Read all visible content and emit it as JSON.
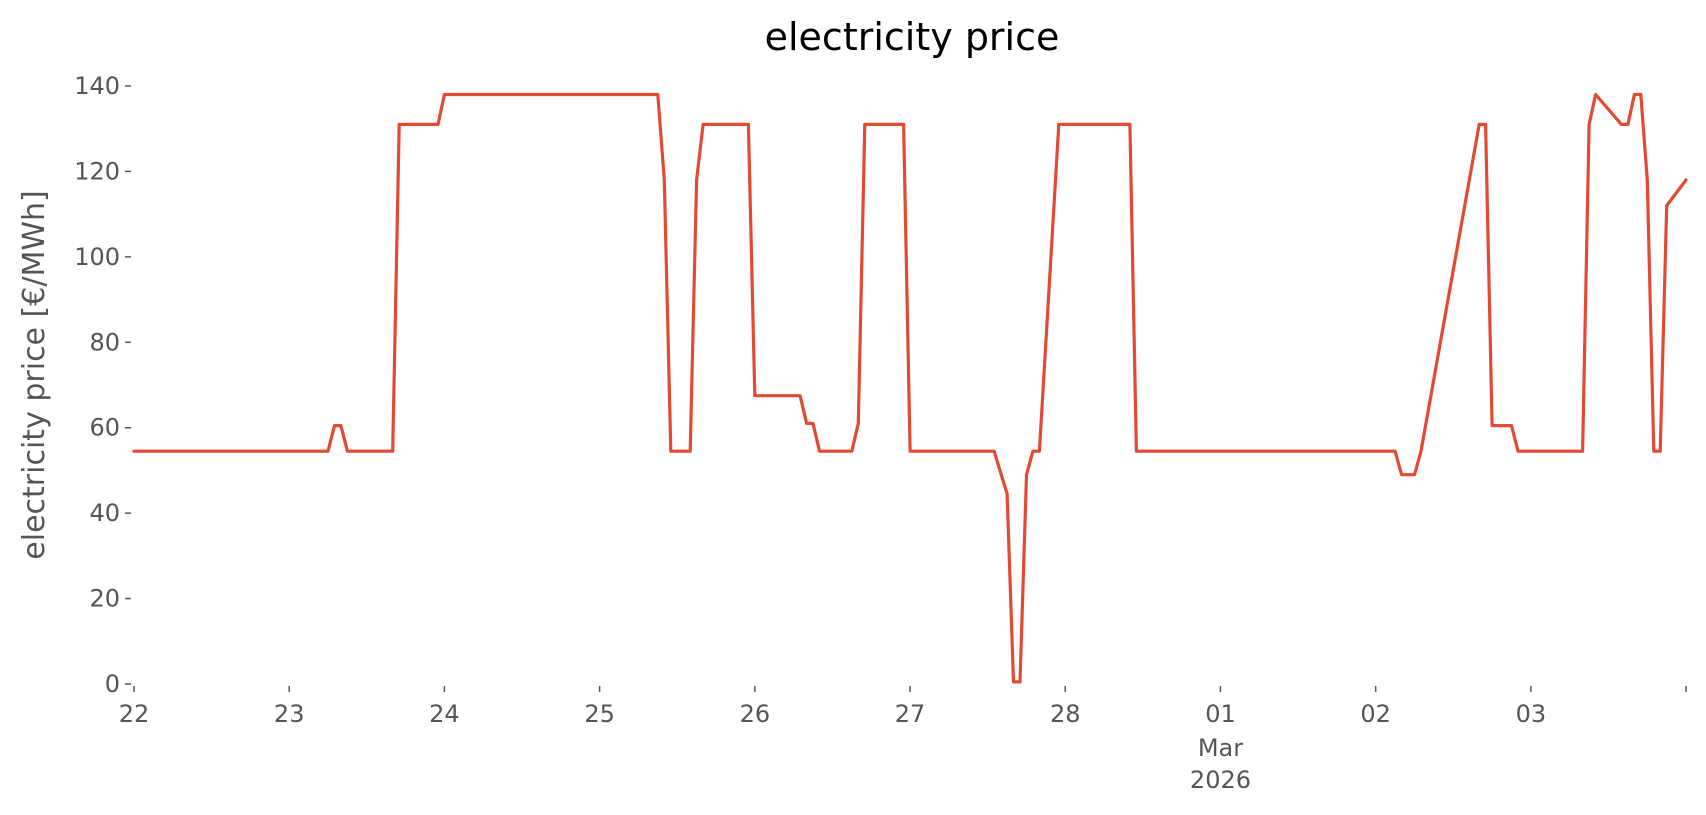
{
  "chart_data": {
    "type": "line",
    "title": "electricity price",
    "xlabel": "",
    "ylabel": "electricity price [€/MWh]",
    "ylim": [
      0,
      140
    ],
    "xlim": [
      "2026-02-22T00:00",
      "2026-03-03T23:59"
    ],
    "grid": false,
    "y_ticks": [
      0,
      20,
      40,
      60,
      80,
      100,
      120,
      140
    ],
    "x_ticks": [
      {
        "date": "2026-02-22T00:00",
        "label": "22"
      },
      {
        "date": "2026-02-23T00:00",
        "label": "23"
      },
      {
        "date": "2026-02-24T00:00",
        "label": "24"
      },
      {
        "date": "2026-02-25T00:00",
        "label": "25"
      },
      {
        "date": "2026-02-26T00:00",
        "label": "26"
      },
      {
        "date": "2026-02-27T00:00",
        "label": "27"
      },
      {
        "date": "2026-02-28T00:00",
        "label": "28"
      },
      {
        "date": "2026-03-01T00:00",
        "label": "01"
      },
      {
        "date": "2026-03-02T00:00",
        "label": "02"
      },
      {
        "date": "2026-03-03T00:00",
        "label": "03"
      },
      {
        "date": "2026-03-03T23:59",
        "label": ""
      }
    ],
    "x_sublabels": [
      {
        "date": "2026-03-01T00:00",
        "lines": [
          "Mar",
          "2026"
        ]
      }
    ],
    "series": [
      {
        "color": "#E24A33",
        "x": [
          "2026-02-22T00:00",
          "2026-02-23T06:00",
          "2026-02-23T07:00",
          "2026-02-23T08:00",
          "2026-02-23T09:00",
          "2026-02-23T16:00",
          "2026-02-23T17:00",
          "2026-02-23T23:00",
          "2026-02-24T00:00",
          "2026-02-25T09:00",
          "2026-02-25T10:00",
          "2026-02-25T11:00",
          "2026-02-25T14:00",
          "2026-02-25T15:00",
          "2026-02-25T16:00",
          "2026-02-25T23:00",
          "2026-02-26T00:00",
          "2026-02-26T07:00",
          "2026-02-26T08:00",
          "2026-02-26T09:00",
          "2026-02-26T10:00",
          "2026-02-26T15:00",
          "2026-02-26T16:00",
          "2026-02-26T17:00",
          "2026-02-26T23:00",
          "2026-02-27T00:00",
          "2026-02-27T13:00",
          "2026-02-27T15:00",
          "2026-02-27T16:00",
          "2026-02-27T17:00",
          "2026-02-27T18:00",
          "2026-02-27T19:00",
          "2026-02-27T20:00",
          "2026-02-27T23:00",
          "2026-02-28T00:00",
          "2026-02-28T10:00",
          "2026-02-28T11:00",
          "2026-02-28T23:00",
          "2026-03-01T00:00",
          "2026-03-01T04:00",
          "2026-03-01T05:00",
          "2026-03-01T07:00",
          "2026-03-01T08:00",
          "2026-03-01T13:00",
          "2026-03-01T14:00",
          "2026-03-01T15:00",
          "2026-03-01T16:00",
          "2026-03-01T17:00",
          "2026-03-01T18:00",
          "2026-03-02T00:00",
          "2026-03-02T03:00",
          "2026-03-02T04:00",
          "2026-03-02T06:00",
          "2026-03-02T07:00",
          "2026-03-02T16:00",
          "2026-03-02T17:00",
          "2026-03-02T18:00",
          "2026-03-02T21:00",
          "2026-03-02T22:00",
          "2026-03-03T00:00",
          "2026-03-03T08:00",
          "2026-03-03T09:00",
          "2026-03-03T10:00",
          "2026-03-03T14:00",
          "2026-03-03T15:00",
          "2026-03-03T16:00",
          "2026-03-03T17:00",
          "2026-03-03T18:00",
          "2026-03-03T19:00",
          "2026-03-03T20:00",
          "2026-03-03T21:00",
          "2026-03-03T23:59"
        ],
        "y": [
          54.5,
          54.5,
          60.5,
          60.5,
          54.5,
          54.5,
          131,
          131,
          138,
          138,
          118,
          54.5,
          54.5,
          118,
          131,
          131,
          67.5,
          67.5,
          61,
          61,
          54.5,
          54.5,
          61,
          131,
          131,
          54.5,
          54.5,
          44.5,
          0.5,
          0.5,
          49,
          54.5,
          54.5,
          131,
          131,
          131,
          54.5,
          54.5,
          54.5,
          54.5,
          54.5,
          54.5,
          54.5,
          54.5,
          54.5,
          54.5,
          54.5,
          54.5,
          54.5,
          54.5,
          54.5,
          49,
          49,
          54.5,
          131,
          131,
          60.5,
          60.5,
          54.5,
          54.5,
          54.5,
          131,
          138,
          131,
          131,
          138,
          138,
          118,
          54.5,
          54.5,
          112,
          118
        ]
      }
    ]
  }
}
